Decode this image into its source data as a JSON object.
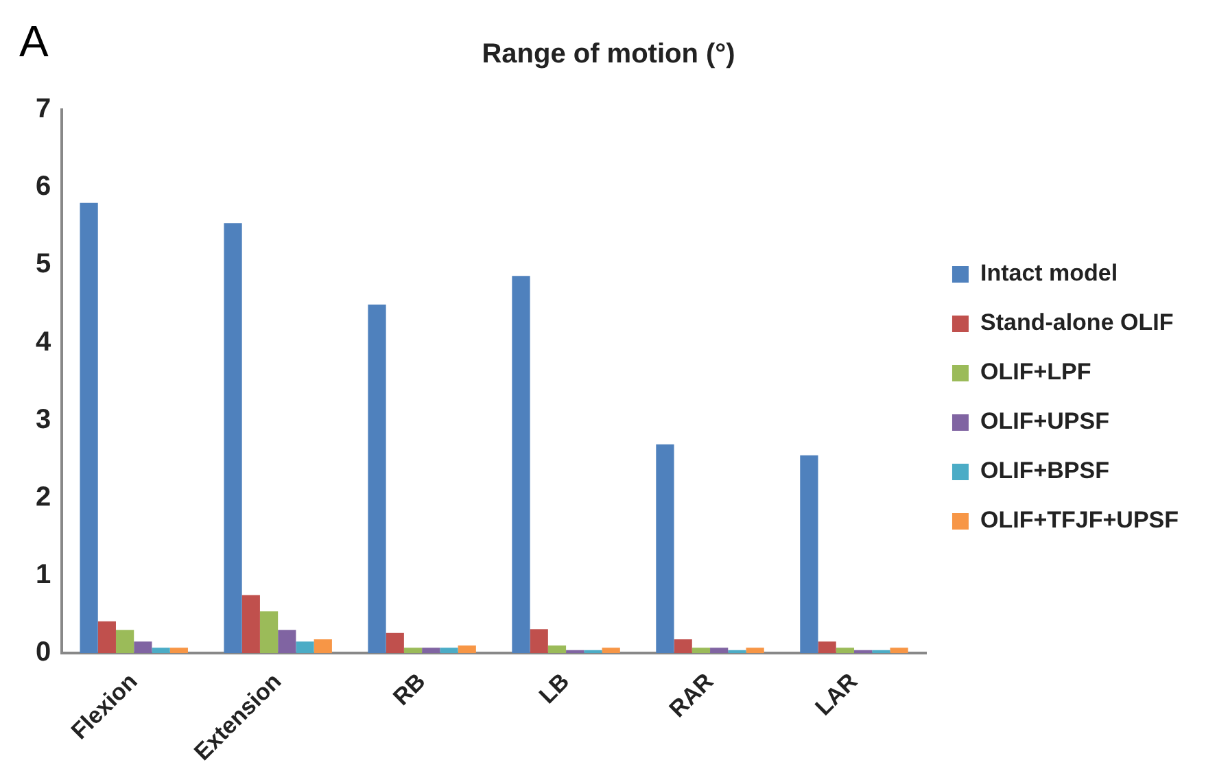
{
  "chart_data": {
    "type": "bar",
    "title": "Range of motion (°)",
    "annotations": [
      "A"
    ],
    "categories": [
      "Flexion",
      "Extension",
      "RB",
      "LB",
      "RAR",
      "LAR"
    ],
    "series": [
      {
        "name": "Intact model",
        "color": "#4f81bd",
        "values": [
          5.8,
          5.54,
          4.49,
          4.86,
          2.69,
          2.55
        ]
      },
      {
        "name": "Stand-alone OLIF",
        "color": "#c0504d",
        "values": [
          0.41,
          0.75,
          0.26,
          0.31,
          0.18,
          0.15
        ]
      },
      {
        "name": "OLIF+LPF",
        "color": "#9bbb59",
        "values": [
          0.3,
          0.54,
          0.07,
          0.1,
          0.07,
          0.07
        ]
      },
      {
        "name": "OLIF+UPSF",
        "color": "#8064a2",
        "values": [
          0.15,
          0.3,
          0.07,
          0.04,
          0.07,
          0.04
        ]
      },
      {
        "name": "OLIF+BPSF",
        "color": "#4bacc6",
        "values": [
          0.07,
          0.15,
          0.07,
          0.04,
          0.04,
          0.04
        ]
      },
      {
        "name": "OLIF+TFJF+UPSF",
        "color": "#f79646",
        "values": [
          0.07,
          0.18,
          0.1,
          0.07,
          0.07,
          0.07
        ]
      }
    ],
    "ylim": [
      0,
      7
    ],
    "yticks": [
      0,
      1,
      2,
      3,
      4,
      5,
      6,
      7
    ],
    "grid": false,
    "legend": "right"
  }
}
